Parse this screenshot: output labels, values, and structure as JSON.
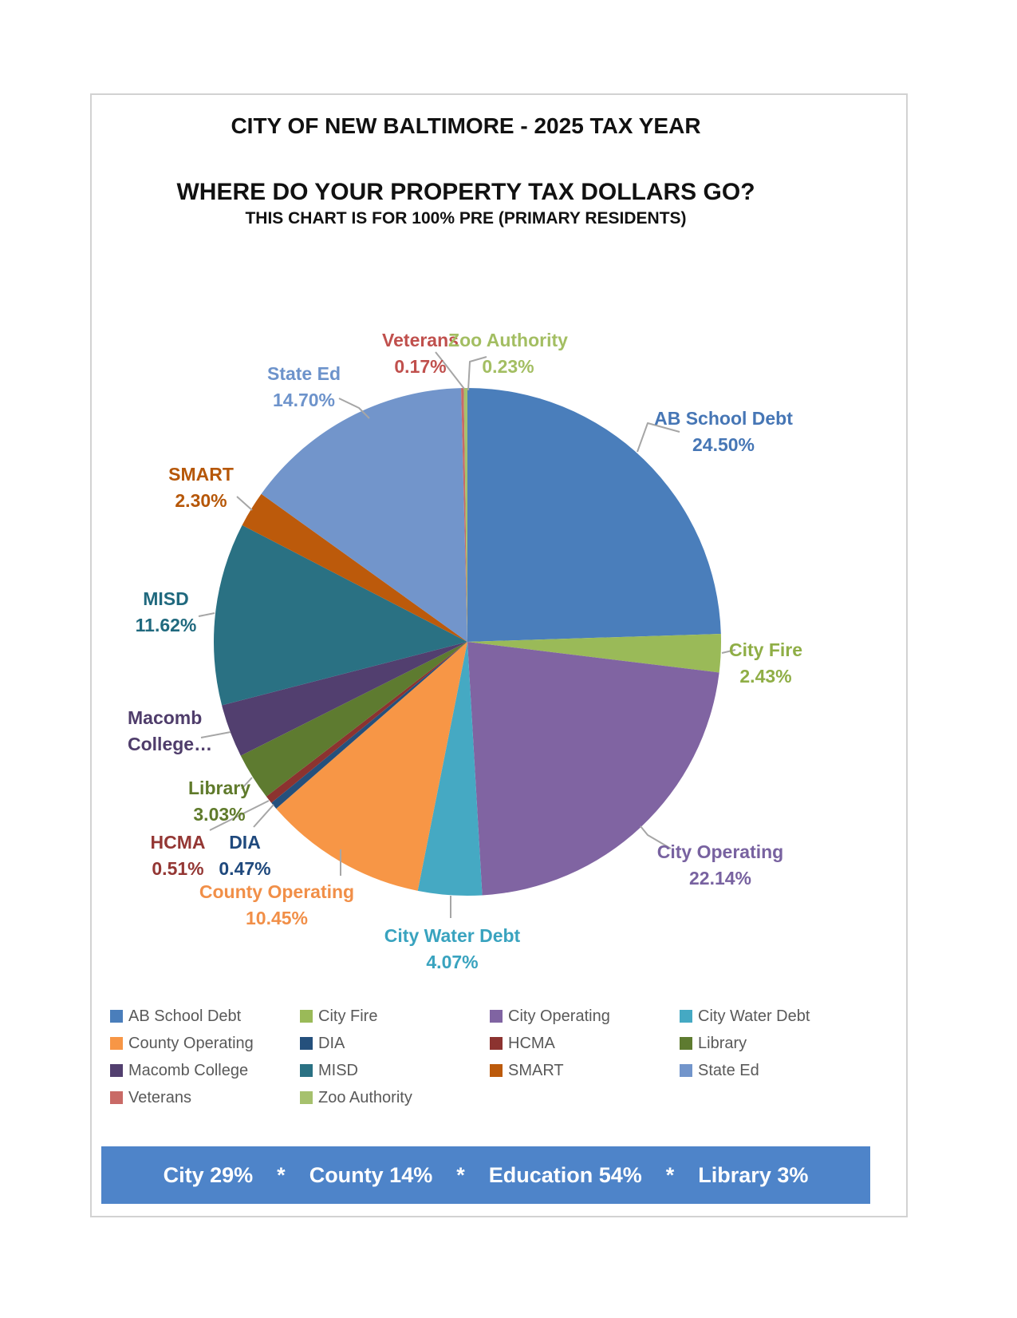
{
  "page": {
    "title1": "CITY OF NEW BALTIMORE - 2025 TAX YEAR",
    "title2": "WHERE DO YOUR PROPERTY TAX DOLLARS GO?",
    "subtitle": "THIS CHART IS FOR 100% PRE (PRIMARY RESIDENTS)"
  },
  "chart_data": {
    "type": "pie",
    "title": "WHERE DO YOUR PROPERTY TAX DOLLARS GO?",
    "start_angle": "12 o'clock",
    "direction": "clockwise",
    "legend_position": "bottom",
    "slices": [
      {
        "name": "AB School Debt",
        "value": 24.5,
        "display": "24.50%",
        "color": "#4A7EBB",
        "label_color": "#4676B5",
        "label_lines": [
          "AB School Debt",
          "24.50%"
        ]
      },
      {
        "name": "City Fire",
        "value": 2.43,
        "display": "2.43%",
        "color": "#9ABA58",
        "label_color": "#8FAE46",
        "label_lines": [
          "City Fire",
          "2.43%"
        ]
      },
      {
        "name": "City Operating",
        "value": 22.14,
        "display": "22.14%",
        "color": "#8064A2",
        "label_color": "#7862A0",
        "label_lines": [
          "City Operating",
          "22.14%"
        ]
      },
      {
        "name": "City Water Debt",
        "value": 4.07,
        "display": "4.07%",
        "color": "#45A9C3",
        "label_color": "#39A3BF",
        "label_lines": [
          "City Water Debt",
          "4.07%"
        ]
      },
      {
        "name": "County Operating",
        "value": 10.45,
        "display": "10.45%",
        "color": "#F79646",
        "label_color": "#F18F48",
        "label_lines": [
          "County Operating",
          "10.45%"
        ]
      },
      {
        "name": "DIA",
        "value": 0.47,
        "display": "0.47%",
        "color": "#25507C",
        "label_color": "#1F497D",
        "label_lines": [
          "DIA",
          "0.47%"
        ]
      },
      {
        "name": "HCMA",
        "value": 0.51,
        "display": "0.51%",
        "color": "#8C3330",
        "label_color": "#943734",
        "label_lines": [
          "HCMA",
          "0.51%"
        ]
      },
      {
        "name": "Library",
        "value": 3.03,
        "display": "3.03%",
        "color": "#5E7B30",
        "label_color": "#5F7A2B",
        "label_lines": [
          "Library",
          "3.03%"
        ]
      },
      {
        "name": "Macomb College",
        "value": 3.38,
        "display": "",
        "color": "#523F6F",
        "label_color": "#4F3D6B",
        "label_lines": [
          "Macomb",
          "College…"
        ]
      },
      {
        "name": "MISD",
        "value": 11.62,
        "display": "11.62%",
        "color": "#2A7183",
        "label_color": "#20697E",
        "label_lines": [
          "MISD",
          "11.62%"
        ]
      },
      {
        "name": "SMART",
        "value": 2.3,
        "display": "2.30%",
        "color": "#BC5A0B",
        "label_color": "#B65708",
        "label_lines": [
          "SMART",
          "2.30%"
        ]
      },
      {
        "name": "State Ed",
        "value": 14.7,
        "display": "14.70%",
        "color": "#7295CB",
        "label_color": "#6D93CB",
        "label_lines": [
          "State Ed",
          "14.70%"
        ]
      },
      {
        "name": "Veterans",
        "value": 0.17,
        "display": "0.17%",
        "color": "#C96A66",
        "label_color": "#C0504D",
        "label_lines": [
          "Veterans",
          "0.17%"
        ]
      },
      {
        "name": "Zoo Authority",
        "value": 0.23,
        "display": "0.23%",
        "color": "#A6C16D",
        "label_color": "#A3BE62",
        "label_lines": [
          "Zoo Authority",
          "0.23%"
        ]
      }
    ]
  },
  "footer": {
    "summary": "City 29%    *    County 14%    *    Education 54%    *    Library 3%"
  }
}
